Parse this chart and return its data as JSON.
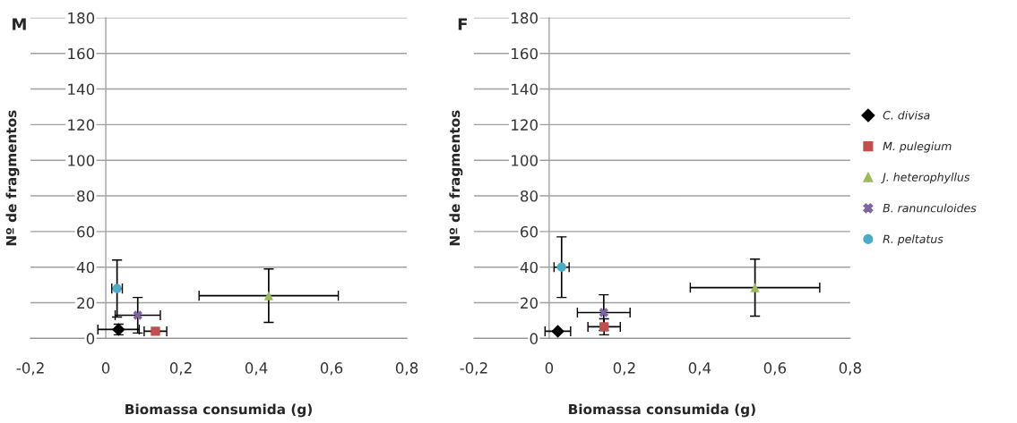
{
  "chart_data": [
    {
      "type": "scatter",
      "title": "M",
      "xlabel": "Biomassa consumida (g)",
      "ylabel": "Nº de fragmentos",
      "xlim": [
        -0.2,
        0.8
      ],
      "xticks": [
        {
          "value": -0.2,
          "label": "-0,2"
        },
        0,
        {
          "value": 0.2,
          "label": "0,2"
        },
        {
          "value": 0.4,
          "label": "0,4"
        },
        {
          "value": 0.6,
          "label": "0,6"
        },
        {
          "value": 0.8,
          "label": "0,8"
        }
      ],
      "ylim": [
        0,
        180
      ],
      "yticks": [
        0,
        20,
        40,
        60,
        80,
        100,
        120,
        140,
        160,
        180
      ],
      "grid": "y",
      "series": [
        {
          "color": "#000000",
          "marker": "diamond",
          "x": [
            0.034
          ],
          "values": [
            5
          ],
          "xerrors": [
            0.055
          ],
          "errors": [
            3
          ]
        },
        {
          "color": "#c0504d",
          "marker": "square",
          "x": [
            0.132
          ],
          "values": [
            4
          ],
          "xerrors": [
            0.03
          ],
          "errors": [
            null
          ]
        },
        {
          "color": "#9bbb59",
          "marker": "triangle",
          "x": [
            0.433
          ],
          "values": [
            24
          ],
          "xerrors": [
            0.185
          ],
          "errors": [
            15
          ]
        },
        {
          "color": "#8064a2",
          "marker": "cross",
          "x": [
            0.085
          ],
          "values": [
            13
          ],
          "xerrors": [
            0.06
          ],
          "errors": [
            10
          ]
        },
        {
          "color": "#4bacc6",
          "marker": "circle",
          "x": [
            0.03
          ],
          "values": [
            28
          ],
          "xerrors": [
            0.014
          ],
          "errors": [
            16
          ]
        }
      ]
    },
    {
      "type": "scatter",
      "title": "F",
      "xlabel": "Biomassa consumida (g)",
      "ylabel": "Nº de fragmentos",
      "xlim": [
        -0.2,
        0.8
      ],
      "xticks": [
        {
          "value": -0.2,
          "label": "-0,2"
        },
        0,
        {
          "value": 0.2,
          "label": "0,2"
        },
        {
          "value": 0.4,
          "label": "0,4"
        },
        {
          "value": 0.6,
          "label": "0,6"
        },
        {
          "value": 0.8,
          "label": "0,8"
        }
      ],
      "ylim": [
        0,
        180
      ],
      "yticks": [
        0,
        20,
        40,
        60,
        80,
        100,
        120,
        140,
        160,
        180
      ],
      "grid": "y",
      "legend": "right",
      "series": [
        {
          "name": "C. divisa",
          "color": "#000000",
          "marker": "diamond",
          "x": [
            0.023
          ],
          "values": [
            4
          ],
          "xerrors": [
            0.034
          ],
          "errors": [
            null
          ]
        },
        {
          "name": "M. pulegium",
          "color": "#c0504d",
          "marker": "square",
          "x": [
            0.146
          ],
          "values": [
            6.5
          ],
          "xerrors": [
            0.043
          ],
          "errors": [
            4.5
          ]
        },
        {
          "name": "J. heterophyllus",
          "color": "#9bbb59",
          "marker": "triangle",
          "x": [
            0.547
          ],
          "values": [
            28.5
          ],
          "xerrors": [
            0.172
          ],
          "errors": [
            16
          ]
        },
        {
          "name": "B. ranunculoides",
          "color": "#8064a2",
          "marker": "cross",
          "x": [
            0.145
          ],
          "values": [
            14.5
          ],
          "xerrors": [
            0.07
          ],
          "errors": [
            10
          ]
        },
        {
          "name": "R. peltatus",
          "color": "#4bacc6",
          "marker": "circle",
          "x": [
            0.033
          ],
          "values": [
            40
          ],
          "xerrors": [
            0.02
          ],
          "errors": [
            17
          ]
        }
      ]
    }
  ]
}
